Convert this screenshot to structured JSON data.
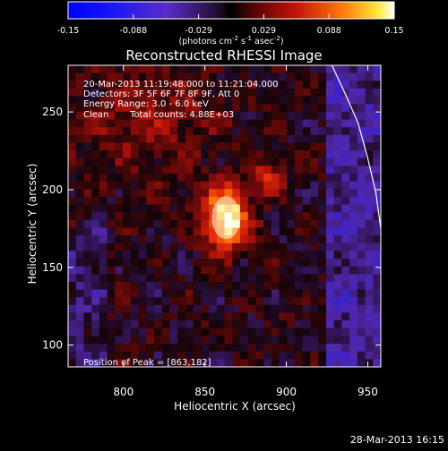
{
  "chart_data": {
    "type": "heatmap",
    "title": "Reconstructed RHESSI Image",
    "xlabel": "Heliocentric X (arcsec)",
    "ylabel": "Heliocentric Y (arcsec)",
    "xlim": [
      766,
      958
    ],
    "ylim": [
      86,
      280
    ],
    "x_ticks": [
      800,
      850,
      900,
      950
    ],
    "y_ticks": [
      100,
      150,
      200,
      250
    ],
    "colorbar": {
      "range": [
        -0.15,
        0.15
      ],
      "ticks": [
        "-0.15",
        "-0.088",
        "-0.029",
        "0.029",
        "0.088",
        "0.15"
      ],
      "unit_main": "(photons cm",
      "unit_exp1": "-2",
      "unit_mid": " s",
      "unit_exp2": "-1",
      "unit_end": " asec",
      "unit_exp3": "-2",
      "unit_close": ")"
    },
    "peak_position": [
      863,
      182
    ],
    "secondary_source_position": [
      888,
      208
    ],
    "limb_arc_points": [
      [
        928,
        280
      ],
      [
        936,
        262
      ],
      [
        944,
        243
      ],
      [
        950,
        220
      ],
      [
        955,
        198
      ],
      [
        958,
        175
      ],
      [
        959,
        150
      ],
      [
        959,
        120
      ]
    ],
    "annotations": {
      "time_range": "20-Mar-2013 11:19:48.000 to 11:21:04.000",
      "detectors": "Detectors: 3F 5F 6F 7F 8F 9F, Att 0",
      "energy_range": "Energy Range: 3.0 - 6.0 keV",
      "method": "Clean",
      "total_counts": "Total counts: 4.88E+03",
      "peak_text": "Position of Peak = [863,182]"
    }
  },
  "footer": {
    "date_stamp": "28-Mar-2013 16:15"
  }
}
